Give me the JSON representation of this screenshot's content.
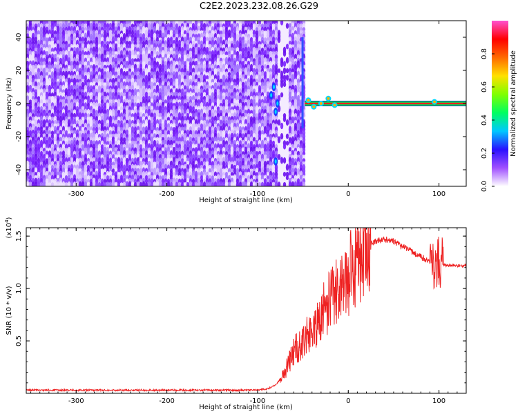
{
  "title": "C2E2.2023.232.08.26.G29",
  "chart_data": [
    {
      "type": "heatmap",
      "title": "C2E2.2023.232.08.26.G29",
      "xlabel": "Height of straight line (km)",
      "ylabel": "Frequency (Hz)",
      "xlim": [
        -355,
        130
      ],
      "ylim": [
        -50,
        50
      ],
      "x_ticks": [
        "-300",
        "-200",
        "-100",
        "0",
        "100"
      ],
      "y_ticks": [
        "-40",
        "-20",
        "0",
        "20",
        "40"
      ],
      "colorbar": {
        "label": "Normalized spectral amplitude",
        "range": [
          0,
          1
        ],
        "ticks": [
          "0.0",
          "0.2",
          "0.4",
          "0.6",
          "0.8"
        ],
        "colors": [
          "#ffffff",
          "#a050ff",
          "#2a10ff",
          "#00c8ff",
          "#00ff60",
          "#80ff00",
          "#ffe000",
          "#ff6a00",
          "#ff0000",
          "#ff50d0"
        ]
      },
      "noise_region_x": [
        -355,
        -48
      ],
      "signal_x_start": -48,
      "signal_frequency_hz": 0,
      "grid": false
    },
    {
      "type": "line",
      "xlabel": "Height of straight line (km)",
      "ylabel": "SNR (10 * v/v)",
      "y_multiplier": "(x10",
      "y_multiplier_exp": "4",
      "y_multiplier_close": ")",
      "xlim": [
        -355,
        130
      ],
      "ylim": [
        0,
        1.58
      ],
      "x_ticks": [
        "-300",
        "-200",
        "-100",
        "0",
        "100"
      ],
      "y_ticks": [
        "0.5",
        "1.0",
        "1.5"
      ],
      "color": "#ee2222",
      "grid": false,
      "x": [
        -355,
        -300,
        -250,
        -200,
        -150,
        -110,
        -100,
        -90,
        -80,
        -70,
        -60,
        -50,
        -40,
        -30,
        -20,
        -10,
        0,
        10,
        20,
        30,
        40,
        50,
        60,
        70,
        80,
        90,
        95,
        100,
        105,
        110,
        120,
        130
      ],
      "y": [
        0.03,
        0.03,
        0.03,
        0.03,
        0.03,
        0.03,
        0.035,
        0.04,
        0.08,
        0.2,
        0.4,
        0.5,
        0.6,
        0.75,
        0.9,
        1.0,
        1.12,
        1.3,
        1.4,
        1.45,
        1.47,
        1.45,
        1.4,
        1.35,
        1.3,
        1.26,
        1.25,
        1.25,
        1.23,
        1.22,
        1.22,
        1.22
      ]
    }
  ]
}
